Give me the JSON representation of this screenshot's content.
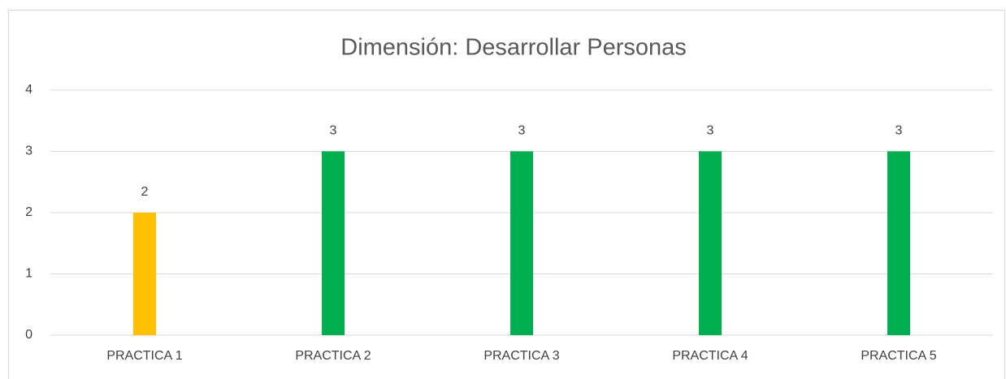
{
  "chart_data": {
    "type": "bar",
    "title": "Dimensión: Desarrollar Personas",
    "categories": [
      "PRACTICA 1",
      "PRACTICA 2",
      "PRACTICA 3",
      "PRACTICA 4",
      "PRACTICA 5"
    ],
    "values": [
      2,
      3,
      3,
      3,
      3
    ],
    "colors": [
      "#FFC000",
      "#00B050",
      "#00B050",
      "#00B050",
      "#00B050"
    ],
    "ylim": [
      0,
      4
    ],
    "yticks": [
      0,
      1,
      2,
      3,
      4
    ],
    "grid": true
  }
}
